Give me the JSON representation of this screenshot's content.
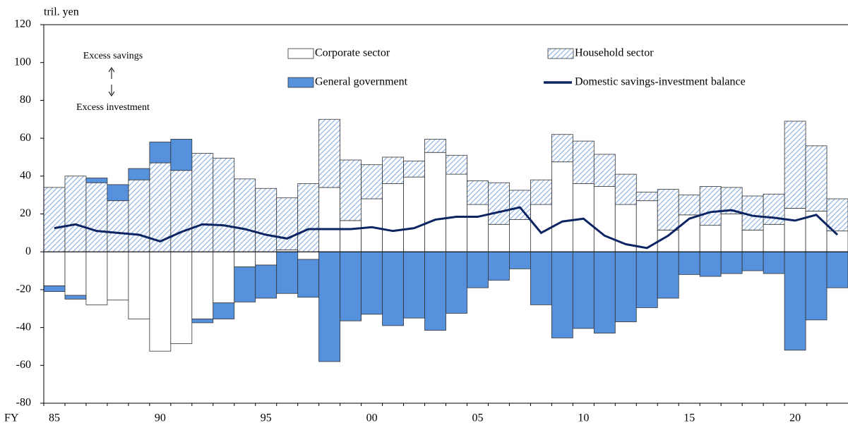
{
  "chart_data": {
    "type": "bar",
    "y_label": "tril. yen",
    "x_label": "FY",
    "annotations": [
      "Excess savings",
      "Excess investment"
    ],
    "categories": [
      "85",
      null,
      null,
      null,
      null,
      "90",
      null,
      null,
      null,
      null,
      "95",
      null,
      null,
      null,
      null,
      "00",
      null,
      null,
      null,
      null,
      "05",
      null,
      null,
      null,
      null,
      "10",
      null,
      null,
      null,
      null,
      "15",
      null,
      null,
      null,
      null,
      "20",
      null,
      null
    ],
    "ylim": [
      -80,
      120
    ],
    "yticks": [
      -80,
      -60,
      -40,
      -20,
      0,
      20,
      40,
      60,
      80,
      100,
      120
    ],
    "stacked": true,
    "series": [
      {
        "name": "Corporate sector",
        "type": "bar",
        "color": "#ffffff",
        "hatch": false,
        "values": [
          -18,
          -23,
          -28,
          -25.5,
          -35.5,
          -52.5,
          -48.5,
          -35.5,
          -27,
          -8,
          -7,
          1,
          -4,
          34,
          16.5,
          28,
          36,
          39.5,
          52.5,
          41,
          25,
          14.5,
          17,
          25,
          47.5,
          36,
          34.5,
          25,
          27,
          11.5,
          19.5,
          14,
          20,
          11.5,
          14.5,
          23,
          21.5,
          11
        ]
      },
      {
        "name": "Household sector",
        "type": "bar",
        "color": "#8fb3e3",
        "hatch": true,
        "values": [
          34,
          40,
          36.5,
          27,
          38,
          47,
          43,
          52,
          49.5,
          38.5,
          33.5,
          27.5,
          36,
          36,
          32,
          18,
          14,
          8.5,
          7,
          10,
          12.5,
          22,
          15.5,
          13,
          14.5,
          22.5,
          17,
          16,
          4.5,
          21.5,
          10.5,
          20.5,
          14,
          18,
          16,
          46,
          34.5,
          17
        ]
      },
      {
        "name": "General government",
        "type": "bar",
        "color": "#5591dc",
        "hatch": false,
        "values": [
          -3,
          -2,
          2.5,
          8.5,
          6,
          11,
          16.5,
          -2,
          -8.5,
          -18.5,
          -17.5,
          -22,
          -20,
          -58,
          -36.5,
          -33,
          -39,
          -35,
          -41.5,
          -32.5,
          -19,
          -15,
          -9,
          -28,
          -45.5,
          -40.5,
          -43,
          -37,
          -29.5,
          -24.5,
          -12,
          -13,
          -11.5,
          -10,
          -11.5,
          -52,
          -36,
          -19
        ]
      },
      {
        "name": "Domestic savings-investment balance",
        "type": "line",
        "color": "#0c2461",
        "values": [
          12.5,
          14.5,
          11,
          10,
          9,
          5.5,
          10.5,
          14.5,
          14,
          12,
          9,
          7,
          12,
          12,
          12,
          13,
          11,
          12.5,
          17,
          18.5,
          18.5,
          21,
          23.5,
          10,
          16,
          17.5,
          8.5,
          4,
          2,
          8.5,
          17.5,
          21,
          22,
          19,
          18,
          16.5,
          19.5,
          9
        ]
      }
    ]
  }
}
